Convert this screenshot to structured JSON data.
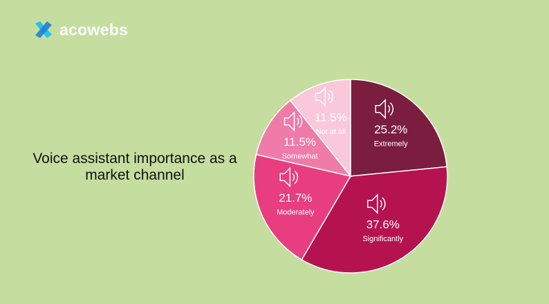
{
  "brand": "acowebs",
  "chart_data": {
    "type": "pie",
    "title": "Voice assistant importance as a market channel",
    "categories": [
      "Extremely",
      "Significantly",
      "Moderately",
      "Somewhat",
      "Not at all"
    ],
    "values": [
      25.2,
      37.6,
      21.7,
      11.5,
      11.5
    ],
    "value_labels": [
      "25.2%",
      "37.6%",
      "21.7%",
      "11.5%",
      "11.5%"
    ],
    "colors": [
      "#7a1d3e",
      "#b5134f",
      "#e83e80",
      "#f07aa8",
      "#f9c8da"
    ]
  }
}
